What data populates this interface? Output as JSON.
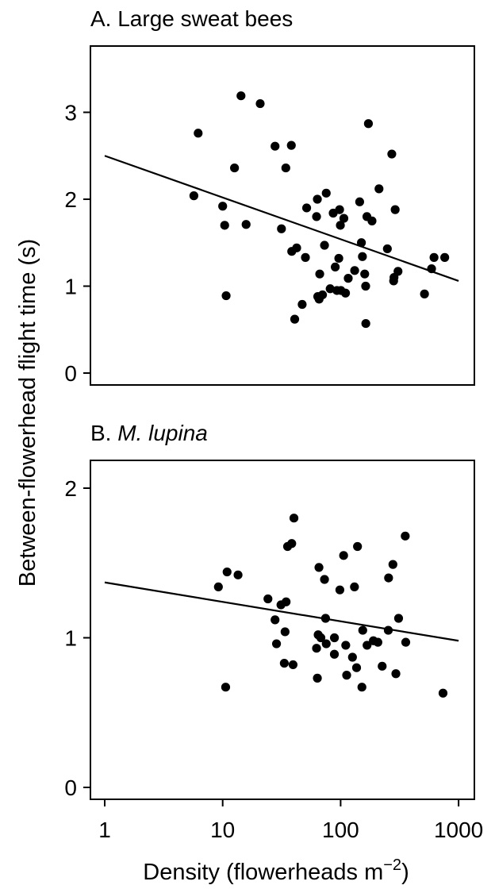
{
  "y_axis_label": "Between-flowerhead flight time (s)",
  "x_axis_label": "Density (flowerheads m",
  "x_axis_label_exponent": "−2",
  "x_axis_label_close": ")",
  "chart_data": [
    {
      "type": "scatter",
      "title": "A. Large sweat bees",
      "title_prefix": "A. ",
      "title_main": "Large sweat bees",
      "title_italic": false,
      "xscale": "log",
      "xlim": [
        0.8,
        1400
      ],
      "ylim": [
        -0.15,
        3.75
      ],
      "yticks": [
        0,
        1,
        2,
        3
      ],
      "ytick_labels": [
        "0",
        "1",
        "2",
        "3"
      ],
      "xticks": [],
      "fit_line": {
        "x": [
          1,
          1000
        ],
        "y": [
          2.5,
          1.06
        ]
      },
      "points": [
        {
          "x": 5.7,
          "y": 2.04
        },
        {
          "x": 6.2,
          "y": 2.76
        },
        {
          "x": 10,
          "y": 1.92
        },
        {
          "x": 10.4,
          "y": 1.7
        },
        {
          "x": 10.7,
          "y": 0.89
        },
        {
          "x": 12.6,
          "y": 2.36
        },
        {
          "x": 14.3,
          "y": 3.19
        },
        {
          "x": 15.8,
          "y": 1.71
        },
        {
          "x": 20.8,
          "y": 3.1
        },
        {
          "x": 27.8,
          "y": 2.61
        },
        {
          "x": 31.5,
          "y": 1.66
        },
        {
          "x": 34.3,
          "y": 2.36
        },
        {
          "x": 38.2,
          "y": 2.62
        },
        {
          "x": 38.5,
          "y": 1.4
        },
        {
          "x": 40.8,
          "y": 0.62
        },
        {
          "x": 42.4,
          "y": 1.44
        },
        {
          "x": 47.2,
          "y": 0.79
        },
        {
          "x": 50.3,
          "y": 1.33
        },
        {
          "x": 51.5,
          "y": 1.9
        },
        {
          "x": 62.5,
          "y": 1.8
        },
        {
          "x": 63.5,
          "y": 2.0
        },
        {
          "x": 64,
          "y": 0.88
        },
        {
          "x": 65.7,
          "y": 0.85
        },
        {
          "x": 66.5,
          "y": 1.14
        },
        {
          "x": 70.2,
          "y": 0.9
        },
        {
          "x": 73,
          "y": 1.47
        },
        {
          "x": 75.5,
          "y": 2.07
        },
        {
          "x": 81.5,
          "y": 0.97
        },
        {
          "x": 86.5,
          "y": 1.84
        },
        {
          "x": 90,
          "y": 1.22
        },
        {
          "x": 93,
          "y": 0.95
        },
        {
          "x": 96.5,
          "y": 1.32
        },
        {
          "x": 98,
          "y": 1.88
        },
        {
          "x": 99.5,
          "y": 1.7
        },
        {
          "x": 100.5,
          "y": 0.95
        },
        {
          "x": 106.5,
          "y": 1.78
        },
        {
          "x": 110,
          "y": 0.92
        },
        {
          "x": 116,
          "y": 1.09
        },
        {
          "x": 131.5,
          "y": 1.18
        },
        {
          "x": 145,
          "y": 1.97
        },
        {
          "x": 150,
          "y": 1.5
        },
        {
          "x": 153,
          "y": 1.34
        },
        {
          "x": 160,
          "y": 1.14
        },
        {
          "x": 163,
          "y": 1.0
        },
        {
          "x": 163.5,
          "y": 0.57
        },
        {
          "x": 167,
          "y": 1.8
        },
        {
          "x": 172,
          "y": 2.87
        },
        {
          "x": 184.5,
          "y": 1.75
        },
        {
          "x": 211.5,
          "y": 2.12
        },
        {
          "x": 249,
          "y": 1.43
        },
        {
          "x": 271.5,
          "y": 2.52
        },
        {
          "x": 281.5,
          "y": 1.06
        },
        {
          "x": 283.5,
          "y": 1.1
        },
        {
          "x": 290,
          "y": 1.88
        },
        {
          "x": 306.5,
          "y": 1.17
        },
        {
          "x": 514,
          "y": 0.91
        },
        {
          "x": 590,
          "y": 1.2
        },
        {
          "x": 619,
          "y": 1.33
        },
        {
          "x": 763,
          "y": 1.33
        }
      ]
    },
    {
      "type": "scatter",
      "title": "B. M. lupina",
      "title_prefix": "B. ",
      "title_main": "M. lupina",
      "title_italic": true,
      "xscale": "log",
      "xlim": [
        0.8,
        1400
      ],
      "ylim": [
        -0.05,
        2.2
      ],
      "yticks": [
        0,
        1,
        2
      ],
      "ytick_labels": [
        "0",
        "1",
        "2"
      ],
      "xticks": [
        1,
        10,
        100,
        1000
      ],
      "xtick_labels": [
        "1",
        "10",
        "100",
        "1000"
      ],
      "fit_line": {
        "x": [
          1,
          1000
        ],
        "y": [
          1.37,
          0.98
        ]
      },
      "points": [
        {
          "x": 9.2,
          "y": 1.34
        },
        {
          "x": 10.6,
          "y": 0.67
        },
        {
          "x": 10.9,
          "y": 1.44
        },
        {
          "x": 13.5,
          "y": 1.42
        },
        {
          "x": 24.2,
          "y": 1.26
        },
        {
          "x": 27.8,
          "y": 1.12
        },
        {
          "x": 28.6,
          "y": 0.96
        },
        {
          "x": 31.2,
          "y": 1.22
        },
        {
          "x": 33.3,
          "y": 0.83
        },
        {
          "x": 33.8,
          "y": 1.04
        },
        {
          "x": 34.5,
          "y": 1.24
        },
        {
          "x": 35.5,
          "y": 1.61
        },
        {
          "x": 38.5,
          "y": 1.63
        },
        {
          "x": 39.5,
          "y": 0.82
        },
        {
          "x": 40.2,
          "y": 1.8
        },
        {
          "x": 62.5,
          "y": 0.93
        },
        {
          "x": 63.5,
          "y": 0.73
        },
        {
          "x": 64.5,
          "y": 1.02
        },
        {
          "x": 65.5,
          "y": 1.47
        },
        {
          "x": 68,
          "y": 1.0
        },
        {
          "x": 73,
          "y": 1.39
        },
        {
          "x": 74.5,
          "y": 1.13
        },
        {
          "x": 75.5,
          "y": 0.96
        },
        {
          "x": 88.5,
          "y": 0.89
        },
        {
          "x": 88.6,
          "y": 1.0
        },
        {
          "x": 98.5,
          "y": 1.32
        },
        {
          "x": 106,
          "y": 1.55
        },
        {
          "x": 110.5,
          "y": 0.95
        },
        {
          "x": 112.5,
          "y": 0.75
        },
        {
          "x": 126,
          "y": 0.87
        },
        {
          "x": 131,
          "y": 1.34
        },
        {
          "x": 136.5,
          "y": 0.8
        },
        {
          "x": 139,
          "y": 1.61
        },
        {
          "x": 151.5,
          "y": 0.67
        },
        {
          "x": 154,
          "y": 1.05
        },
        {
          "x": 167.5,
          "y": 0.95
        },
        {
          "x": 189.5,
          "y": 0.98
        },
        {
          "x": 207,
          "y": 0.97
        },
        {
          "x": 225,
          "y": 0.81
        },
        {
          "x": 253.5,
          "y": 1.05
        },
        {
          "x": 255,
          "y": 1.4
        },
        {
          "x": 277.5,
          "y": 1.49
        },
        {
          "x": 294,
          "y": 0.76
        },
        {
          "x": 310,
          "y": 1.13
        },
        {
          "x": 353,
          "y": 1.68
        },
        {
          "x": 356.5,
          "y": 0.97
        },
        {
          "x": 738,
          "y": 0.63
        }
      ]
    }
  ]
}
